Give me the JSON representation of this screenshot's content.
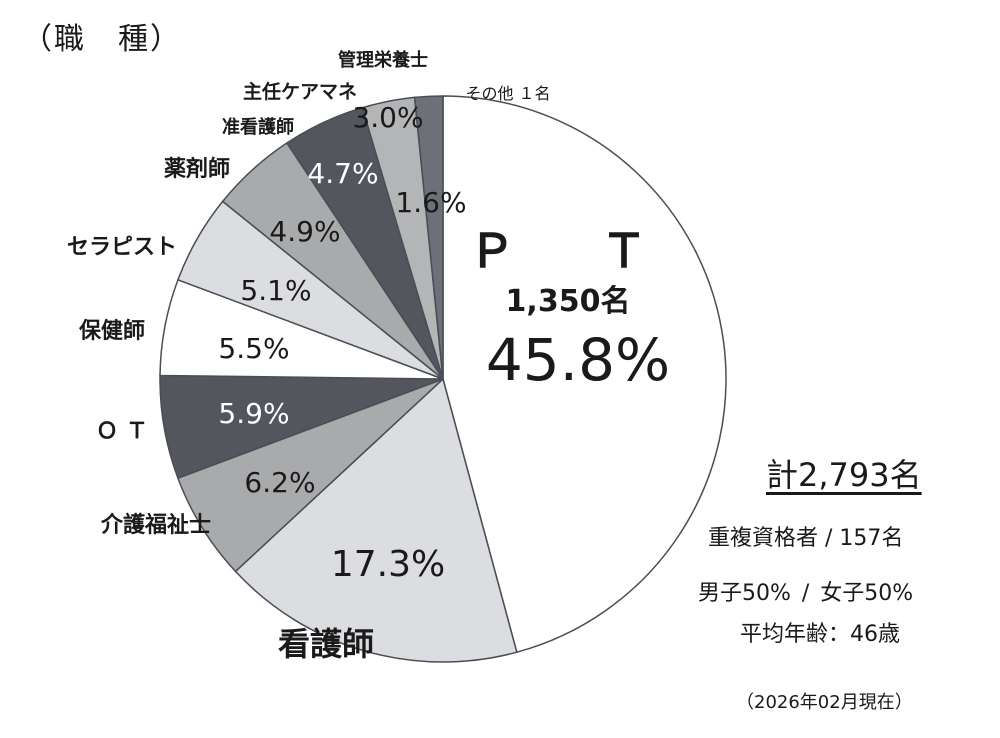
{
  "page_title": "（職　種）",
  "summary": {
    "total": "計2,793名",
    "duplicate": "重複資格者 / 157名",
    "gender": "男子50% /  女子50%",
    "avg_age": "平均年齢：46歳",
    "as_of": "（2026年02月現在）"
  },
  "chart_data": {
    "type": "pie",
    "title": "",
    "start_angle_deg": 0,
    "direction": "clockwise",
    "slices": [
      {
        "name": "Ｐ　Ｔ",
        "pct_label": "45.8%",
        "value": 45.8,
        "count_label": "1,350名",
        "color": "#ffffff"
      },
      {
        "name": "看護師",
        "pct_label": "17.3%",
        "value": 17.3,
        "color": "#dcdde0"
      },
      {
        "name": "介護福祉士",
        "pct_label": "6.2%",
        "value": 6.2,
        "color": "#a9aaac"
      },
      {
        "name": "ＯＴ",
        "pct_label": "5.9%",
        "value": 5.9,
        "color": "#53565d"
      },
      {
        "name": "保健師",
        "pct_label": "5.5%",
        "value": 5.5,
        "color": "#ffffff"
      },
      {
        "name": "セラピスト",
        "pct_label": "5.1%",
        "value": 5.1,
        "color": "#dcdde0"
      },
      {
        "name": "薬剤師",
        "pct_label": "4.9%",
        "value": 4.9,
        "color": "#a9aaac"
      },
      {
        "name": "准看護師",
        "pct_label": "4.7%",
        "value": 4.7,
        "color": "#53565d"
      },
      {
        "name": "主任ケアマネ",
        "pct_label": "3.0%",
        "value": 3.0,
        "color": "#b4b5b7"
      },
      {
        "name": "管理栄養士",
        "pct_label": "",
        "value": 0,
        "color": "#b4b5b7"
      },
      {
        "name": "その他 １名",
        "pct_label": "1.6%",
        "value": 1.6,
        "color": "#6d7077"
      }
    ]
  }
}
